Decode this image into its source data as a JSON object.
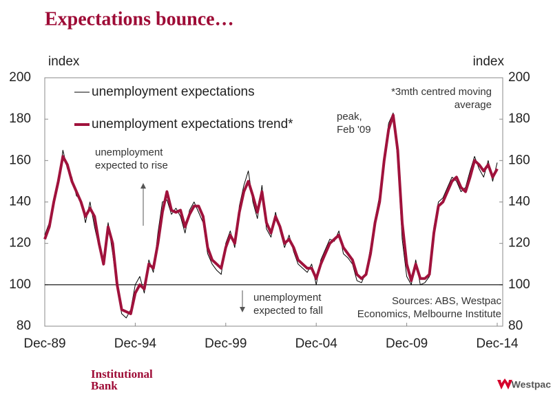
{
  "chart_data": {
    "type": "line",
    "title": "Expectations bounce…",
    "y_label": "index",
    "y2_label": "index",
    "x": [
      "Dec-89",
      "Mar-90",
      "Jun-90",
      "Sep-90",
      "Dec-90",
      "Mar-91",
      "Jun-91",
      "Sep-91",
      "Dec-91",
      "Mar-92",
      "Jun-92",
      "Sep-92",
      "Dec-92",
      "Mar-93",
      "Jun-93",
      "Sep-93",
      "Dec-93",
      "Mar-94",
      "Jun-94",
      "Sep-94",
      "Dec-94",
      "Mar-95",
      "Jun-95",
      "Sep-95",
      "Dec-95",
      "Mar-96",
      "Jun-96",
      "Sep-96",
      "Dec-96",
      "Mar-97",
      "Jun-97",
      "Sep-97",
      "Dec-97",
      "Mar-98",
      "Jun-98",
      "Sep-98",
      "Dec-98",
      "Mar-99",
      "Jun-99",
      "Sep-99",
      "Dec-99",
      "Mar-00",
      "Jun-00",
      "Sep-00",
      "Dec-00",
      "Mar-01",
      "Jun-01",
      "Sep-01",
      "Dec-01",
      "Mar-02",
      "Jun-02",
      "Sep-02",
      "Dec-02",
      "Mar-03",
      "Jun-03",
      "Sep-03",
      "Dec-03",
      "Mar-04",
      "Jun-04",
      "Sep-04",
      "Dec-04",
      "Mar-05",
      "Jun-05",
      "Sep-05",
      "Dec-05",
      "Mar-06",
      "Jun-06",
      "Sep-06",
      "Dec-06",
      "Mar-07",
      "Jun-07",
      "Sep-07",
      "Dec-07",
      "Mar-08",
      "Jun-08",
      "Sep-08",
      "Dec-08",
      "Mar-09",
      "Jun-09",
      "Sep-09",
      "Dec-09",
      "Mar-10",
      "Jun-10",
      "Sep-10",
      "Dec-10",
      "Mar-11",
      "Jun-11",
      "Sep-11",
      "Dec-11",
      "Mar-12",
      "Jun-12",
      "Sep-12",
      "Dec-12",
      "Mar-13",
      "Jun-13",
      "Sep-13",
      "Dec-13",
      "Mar-14",
      "Jun-14",
      "Sep-14",
      "Dec-14"
    ],
    "xticks": [
      "Dec-89",
      "Dec-94",
      "Dec-99",
      "Dec-04",
      "Dec-09",
      "Dec-14"
    ],
    "series": [
      {
        "name": "unemployment expectations",
        "color": "#000000",
        "width": 1,
        "values": [
          124,
          130,
          142,
          148,
          165,
          156,
          152,
          143,
          141,
          130,
          140,
          128,
          118,
          112,
          130,
          115,
          98,
          86,
          84,
          88,
          100,
          104,
          96,
          112,
          106,
          125,
          140,
          141,
          134,
          137,
          133,
          125,
          136,
          140,
          135,
          130,
          115,
          110,
          107,
          105,
          120,
          126,
          118,
          138,
          148,
          155,
          140,
          132,
          148,
          127,
          123,
          135,
          126,
          118,
          124,
          116,
          110,
          108,
          106,
          110,
          100,
          112,
          117,
          122,
          121,
          126,
          115,
          113,
          110,
          102,
          101,
          106,
          118,
          132,
          143,
          162,
          178,
          183,
          160,
          122,
          104,
          100,
          112,
          100,
          101,
          104,
          128,
          140,
          142,
          147,
          152,
          150,
          145,
          147,
          155,
          162,
          156,
          152,
          160,
          150,
          159
        ]
      },
      {
        "name": "unemployment expectations trend*",
        "color": "#a0123c",
        "width": 4,
        "values": [
          122,
          128,
          140,
          150,
          162,
          158,
          150,
          145,
          140,
          133,
          137,
          133,
          120,
          110,
          128,
          120,
          100,
          88,
          87,
          86,
          96,
          100,
          98,
          110,
          108,
          120,
          135,
          145,
          136,
          135,
          136,
          128,
          134,
          138,
          138,
          133,
          118,
          112,
          110,
          108,
          118,
          124,
          120,
          135,
          145,
          150,
          143,
          135,
          145,
          130,
          125,
          133,
          128,
          120,
          122,
          118,
          112,
          110,
          108,
          108,
          103,
          110,
          115,
          120,
          122,
          124,
          118,
          115,
          112,
          105,
          103,
          105,
          115,
          130,
          140,
          160,
          175,
          182,
          165,
          130,
          110,
          102,
          110,
          103,
          103,
          105,
          125,
          138,
          140,
          145,
          150,
          152,
          147,
          145,
          152,
          160,
          158,
          155,
          158,
          152,
          156
        ]
      }
    ],
    "ylim": [
      80,
      200
    ],
    "yticks": [
      80,
      100,
      120,
      140,
      160,
      180,
      200
    ],
    "y2lim": [
      80,
      200
    ],
    "y2ticks": [
      80,
      100,
      120,
      140,
      160,
      180,
      200
    ],
    "reference_line": 100,
    "annotations": [
      {
        "lines": [
          "unemployment",
          "expected to rise"
        ]
      },
      {
        "lines": [
          "unemployment",
          "expected to fall"
        ]
      },
      {
        "lines": [
          "peak,",
          "Feb '09"
        ]
      },
      {
        "lines": [
          "*3mth centred moving",
          "average"
        ]
      },
      {
        "lines": [
          "Sources: ABS, Westpac",
          "Economics, Melbourne Institute"
        ]
      }
    ]
  },
  "footer": {
    "left_logo": [
      "Institutional",
      "Bank"
    ],
    "right_logo": "Westpac"
  }
}
